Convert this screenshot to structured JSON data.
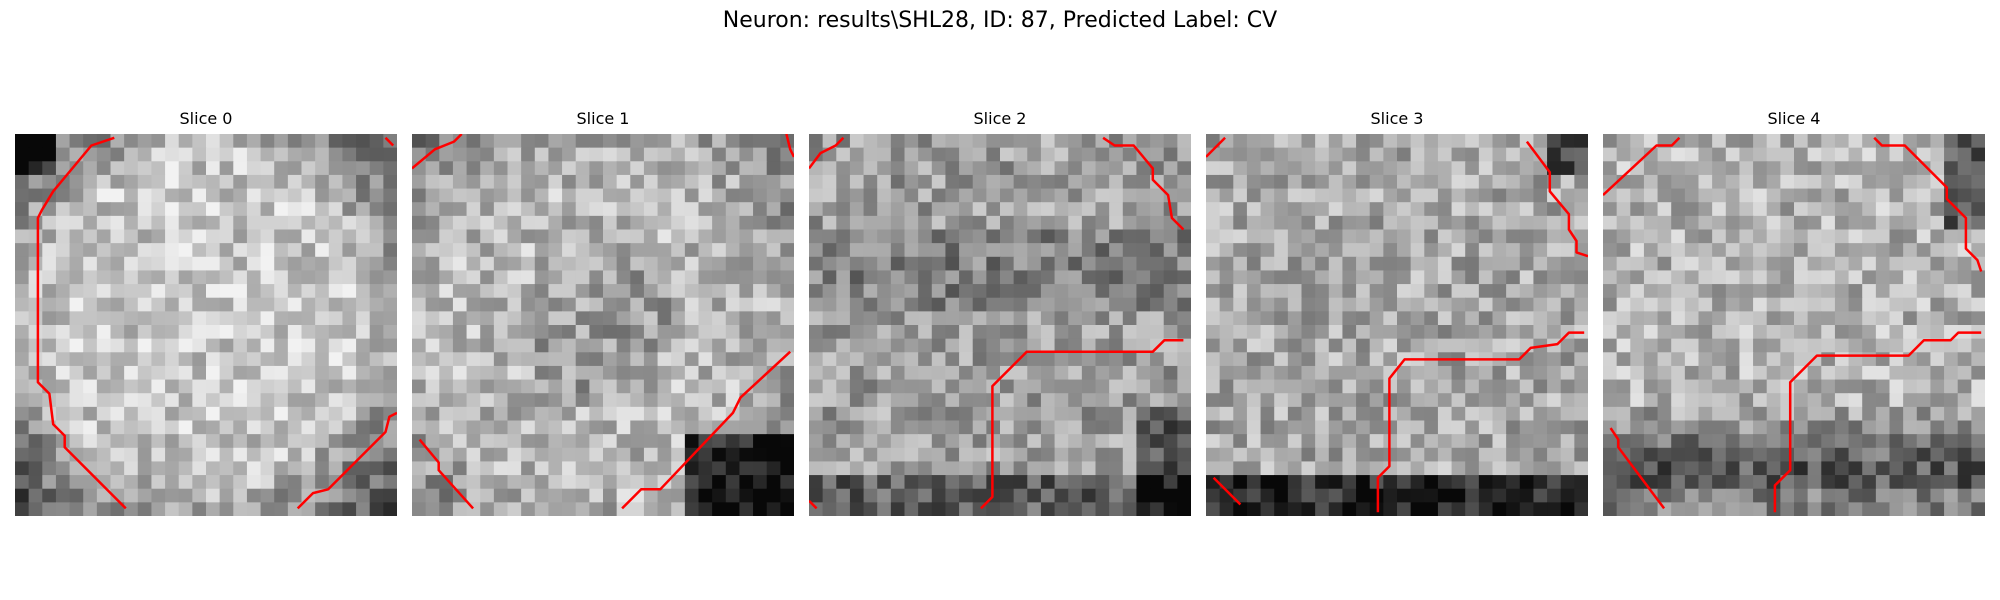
{
  "title": "Neuron: results\\SHL28, ID: 87, Predicted Label: CV",
  "colormap": "gray",
  "contour_color": "#ff0000",
  "slices": [
    {
      "label": "Slice 0"
    },
    {
      "label": "Slice 1"
    },
    {
      "label": "Slice 2"
    },
    {
      "label": "Slice 3"
    },
    {
      "label": "Slice 4"
    }
  ]
}
